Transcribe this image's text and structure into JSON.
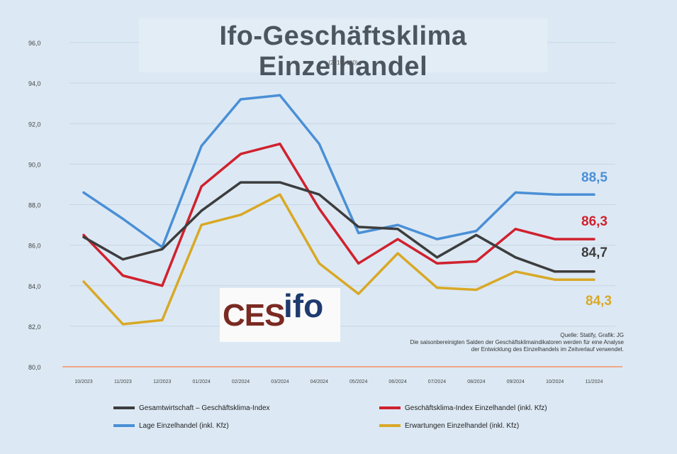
{
  "title": "Ifo-Geschäftsklima Einzelhandel",
  "subtitle": "(2015=100)",
  "source_lines": [
    "Quelle: Statify, Grafik: JG",
    "Die saisonbereinigten Salden der Geschäftsklimaindikatoren werden für eine Analyse",
    "der Entwicklung des Einzelhandels im Zeitverlauf verwendet."
  ],
  "logo": {
    "ces": "CES",
    "ifo": "ifo"
  },
  "colors": {
    "background": "#dce9f4",
    "gesamt": "#3d3d3d",
    "klima": "#d0212e",
    "lage": "#4a8fd6",
    "erwartungen": "#d9a826",
    "baseline": "#f0a58a"
  },
  "chart_data": {
    "type": "line",
    "title": "Ifo-Geschäftsklima Einzelhandel",
    "subtitle": "(2015=100)",
    "categories": [
      "10/2023",
      "11/2023",
      "12/2023",
      "01/2024",
      "02/2024",
      "03/2024",
      "04/2024",
      "05/2024",
      "06/2024",
      "07/2024",
      "08/2024",
      "09/2024",
      "10/2024",
      "11/2024"
    ],
    "y_ticks": [
      "80,0",
      "82,0",
      "84,0",
      "86,0",
      "88,0",
      "90,0",
      "92,0",
      "94,0",
      "96,0"
    ],
    "ylim": [
      80,
      96
    ],
    "grid": true,
    "legend_position": "bottom",
    "series": [
      {
        "name": "Gesamtwirtschaft – Geschäftsklima-Index",
        "color_key": "gesamt",
        "values": [
          86.4,
          85.3,
          85.8,
          87.7,
          89.1,
          89.1,
          88.5,
          86.9,
          86.8,
          85.4,
          86.5,
          85.4,
          84.7,
          84.7
        ]
      },
      {
        "name": "Geschäftsklima-Index Einzelhandel (inkl. Kfz)",
        "color_key": "klima",
        "values": [
          86.5,
          84.5,
          84.0,
          88.9,
          90.5,
          91.0,
          87.8,
          85.1,
          86.3,
          85.1,
          85.2,
          86.8,
          86.3,
          86.3
        ]
      },
      {
        "name": "Lage Einzelhandel (inkl. Kfz)",
        "color_key": "lage",
        "values": [
          88.6,
          87.3,
          85.9,
          90.9,
          93.2,
          93.4,
          91.0,
          86.6,
          87.0,
          86.3,
          86.7,
          88.6,
          88.5,
          88.5
        ]
      },
      {
        "name": "Erwartungen Einzelhandel (inkl. Kfz)",
        "color_key": "erwartungen",
        "values": [
          84.2,
          82.1,
          82.3,
          87.0,
          87.5,
          88.5,
          85.1,
          83.6,
          85.6,
          83.9,
          83.8,
          84.7,
          84.3,
          84.3
        ]
      }
    ],
    "end_labels": [
      {
        "text": "88,5",
        "color_key": "lage"
      },
      {
        "text": "86,3",
        "color_key": "klima"
      },
      {
        "text": "84,7",
        "color_key": "gesamt"
      },
      {
        "text": "84,3",
        "color_key": "erwartungen"
      }
    ]
  }
}
